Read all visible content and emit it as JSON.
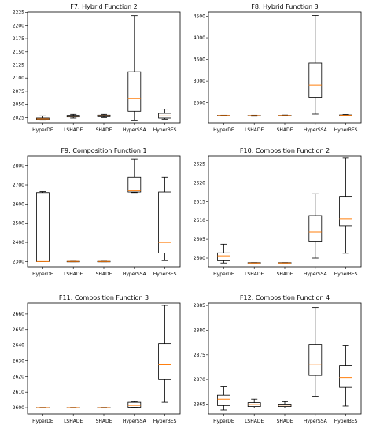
{
  "chart_data": [
    {
      "type": "box",
      "title": "F7: Hybrid Function 2",
      "categories": [
        "HyperDE",
        "LSHADE",
        "SHADE",
        "HyperSSA",
        "HyperBES"
      ],
      "ylim": [
        2015,
        2226
      ],
      "yticks": [
        2025,
        2050,
        2075,
        2100,
        2125,
        2150,
        2175,
        2200,
        2225
      ],
      "boxes": [
        {
          "whislo": 2020,
          "q1": 2021,
          "med": 2022.5,
          "q3": 2024,
          "whishi": 2028
        },
        {
          "whislo": 2024,
          "q1": 2026,
          "med": 2027.5,
          "q3": 2029,
          "whishi": 2031
        },
        {
          "whislo": 2025,
          "q1": 2026.5,
          "med": 2028,
          "q3": 2029.5,
          "whishi": 2031
        },
        {
          "whislo": 2019,
          "q1": 2037,
          "med": 2061,
          "q3": 2112,
          "whishi": 2219
        },
        {
          "whislo": 2022,
          "q1": 2024,
          "med": 2028,
          "q3": 2033,
          "whishi": 2041
        }
      ]
    },
    {
      "type": "box",
      "title": "F8: Hybrid Function 3",
      "categories": [
        "HyperDE",
        "LSHADE",
        "SHADE",
        "HyperSSA",
        "HyperBES"
      ],
      "ylim": [
        2040,
        4600
      ],
      "yticks": [
        2500,
        3000,
        3500,
        4000,
        4500
      ],
      "boxes": [
        {
          "whislo": 2195,
          "q1": 2200,
          "med": 2205,
          "q3": 2210,
          "whishi": 2215
        },
        {
          "whislo": 2190,
          "q1": 2198,
          "med": 2203,
          "q3": 2208,
          "whishi": 2215
        },
        {
          "whislo": 2195,
          "q1": 2200,
          "med": 2205,
          "q3": 2210,
          "whishi": 2218
        },
        {
          "whislo": 2240,
          "q1": 2630,
          "med": 2910,
          "q3": 3420,
          "whishi": 4520
        },
        {
          "whislo": 2195,
          "q1": 2200,
          "med": 2210,
          "q3": 2220,
          "whishi": 2230
        }
      ]
    },
    {
      "type": "box",
      "title": "F9: Composition Function 1",
      "categories": [
        "HyperDE",
        "LSHADE",
        "SHADE",
        "HyperSSA",
        "HyperBES"
      ],
      "ylim": [
        2273,
        2852
      ],
      "yticks": [
        2300,
        2400,
        2500,
        2600,
        2700,
        2800
      ],
      "boxes": [
        {
          "whislo": 2300,
          "q1": 2300,
          "med": 2300,
          "q3": 2660,
          "whishi": 2665
        },
        {
          "whislo": 2299,
          "q1": 2300,
          "med": 2300.5,
          "q3": 2301,
          "whishi": 2302
        },
        {
          "whislo": 2299,
          "q1": 2300,
          "med": 2300.5,
          "q3": 2301,
          "whishi": 2302
        },
        {
          "whislo": 2660,
          "q1": 2663,
          "med": 2670,
          "q3": 2740,
          "whishi": 2835
        },
        {
          "whislo": 2305,
          "q1": 2345,
          "med": 2400,
          "q3": 2663,
          "whishi": 2740
        }
      ]
    },
    {
      "type": "box",
      "title": "F10: Composition Function 2",
      "categories": [
        "HyperDE",
        "LSHADE",
        "SHADE",
        "HyperSSA",
        "HyperBES"
      ],
      "ylim": [
        2597.7,
        2627.2
      ],
      "yticks": [
        2600,
        2605,
        2610,
        2615,
        2620,
        2625
      ],
      "boxes": [
        {
          "whislo": 2598.7,
          "q1": 2599.3,
          "med": 2600.6,
          "q3": 2601.4,
          "whishi": 2603.7
        },
        {
          "whislo": 2598.7,
          "q1": 2598.7,
          "med": 2598.7,
          "q3": 2598.8,
          "whishi": 2598.8
        },
        {
          "whislo": 2598.7,
          "q1": 2598.7,
          "med": 2598.7,
          "q3": 2598.8,
          "whishi": 2598.8
        },
        {
          "whislo": 2600.0,
          "q1": 2604.5,
          "med": 2606.9,
          "q3": 2611.3,
          "whishi": 2617.1
        },
        {
          "whislo": 2601.3,
          "q1": 2608.6,
          "med": 2610.5,
          "q3": 2616.4,
          "whishi": 2626.6
        }
      ]
    },
    {
      "type": "box",
      "title": "F11: Composition Function 3",
      "categories": [
        "HyperDE",
        "LSHADE",
        "SHADE",
        "HyperSSA",
        "HyperBES"
      ],
      "ylim": [
        2596,
        2667
      ],
      "yticks": [
        2600,
        2610,
        2620,
        2630,
        2640,
        2650,
        2660
      ],
      "boxes": [
        {
          "whislo": 2599.8,
          "q1": 2599.9,
          "med": 2600.0,
          "q3": 2600.1,
          "whishi": 2600.2
        },
        {
          "whislo": 2599.8,
          "q1": 2599.9,
          "med": 2600.0,
          "q3": 2600.1,
          "whishi": 2600.2
        },
        {
          "whislo": 2599.8,
          "q1": 2599.9,
          "med": 2600.0,
          "q3": 2600.1,
          "whishi": 2600.2
        },
        {
          "whislo": 2600,
          "q1": 2600.3,
          "med": 2601.5,
          "q3": 2603.5,
          "whishi": 2604
        },
        {
          "whislo": 2603.5,
          "q1": 2618,
          "med": 2627.5,
          "q3": 2641,
          "whishi": 2665.5
        }
      ]
    },
    {
      "type": "box",
      "title": "F12: Composition Function 4",
      "categories": [
        "HyperDE",
        "LSHADE",
        "SHADE",
        "HyperSSA",
        "HyperBES"
      ],
      "ylim": [
        2863,
        2885.5
      ],
      "yticks": [
        2865,
        2870,
        2875,
        2880,
        2885
      ],
      "boxes": [
        {
          "whislo": 2863.8,
          "q1": 2864.7,
          "med": 2866.0,
          "q3": 2866.8,
          "whishi": 2868.5
        },
        {
          "whislo": 2864.2,
          "q1": 2864.5,
          "med": 2864.9,
          "q3": 2865.3,
          "whishi": 2866.0
        },
        {
          "whislo": 2864.2,
          "q1": 2864.5,
          "med": 2864.8,
          "q3": 2865.0,
          "whishi": 2865.5
        },
        {
          "whislo": 2866.6,
          "q1": 2870.8,
          "med": 2873.1,
          "q3": 2877.1,
          "whishi": 2884.6
        },
        {
          "whislo": 2864.6,
          "q1": 2868.4,
          "med": 2870.4,
          "q3": 2872.8,
          "whishi": 2876.8
        }
      ]
    }
  ]
}
